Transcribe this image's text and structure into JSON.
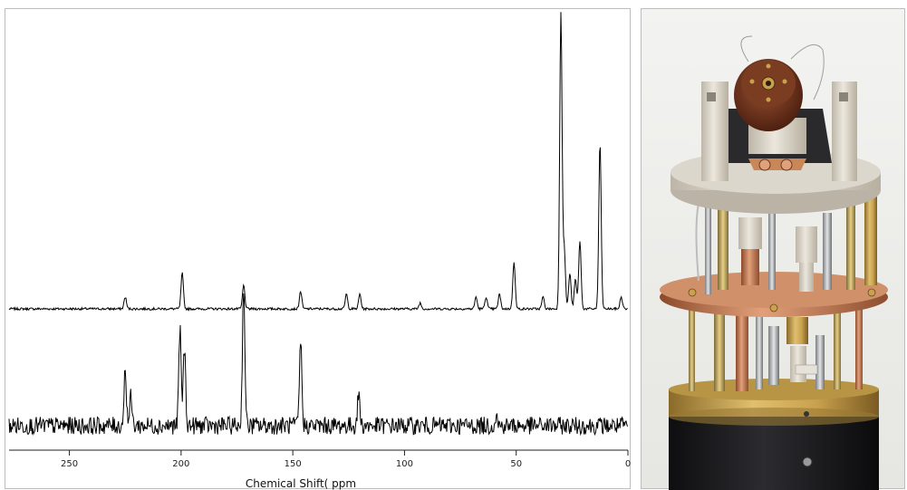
{
  "chart_data": {
    "type": "line",
    "xlabel": "Chemical Shift( ppm",
    "xlim": [
      277,
      0
    ],
    "x_reversed": true,
    "tick_values": [
      250,
      200,
      150,
      100,
      50,
      0
    ],
    "tick_labels": [
      "250",
      "200",
      "150",
      "100",
      "50",
      "0"
    ],
    "grid": false,
    "series": [
      {
        "peaks": [
          {
            "x": 225,
            "height": 0.04
          },
          {
            "x": 199.5,
            "height": 0.12
          },
          {
            "x": 172,
            "height": 0.08
          },
          {
            "x": 146.5,
            "height": 0.06
          },
          {
            "x": 126,
            "height": 0.05
          },
          {
            "x": 120,
            "height": 0.05
          },
          {
            "x": 93,
            "height": 0.02
          },
          {
            "x": 68,
            "height": 0.04
          },
          {
            "x": 63.5,
            "height": 0.04
          },
          {
            "x": 57.5,
            "height": 0.05
          },
          {
            "x": 51,
            "height": 0.16
          },
          {
            "x": 38,
            "height": 0.04
          },
          {
            "x": 30,
            "height": 1.0
          },
          {
            "x": 28.5,
            "height": 0.2
          },
          {
            "x": 26,
            "height": 0.12
          },
          {
            "x": 23.5,
            "height": 0.1
          },
          {
            "x": 21.5,
            "height": 0.23
          },
          {
            "x": 12.5,
            "height": 0.56
          },
          {
            "x": 3,
            "height": 0.04
          }
        ],
        "noise": 0.004
      },
      {
        "peaks": [
          {
            "x": 225,
            "height": 0.16
          },
          {
            "x": 222.5,
            "height": 0.08
          },
          {
            "x": 200.5,
            "height": 0.27
          },
          {
            "x": 198.5,
            "height": 0.22
          },
          {
            "x": 172,
            "height": 0.4
          },
          {
            "x": 146.5,
            "height": 0.24
          },
          {
            "x": 120.5,
            "height": 0.09
          },
          {
            "x": 59,
            "height": 0.03
          }
        ],
        "noise": 0.025
      }
    ]
  },
  "photo": {
    "colors": {
      "black_body": "#1b1b1d",
      "brass": "#c9a24e",
      "copper": "#c7825b",
      "ceramic": "#d6d0c4",
      "rotor": "#6a2f1a"
    }
  }
}
